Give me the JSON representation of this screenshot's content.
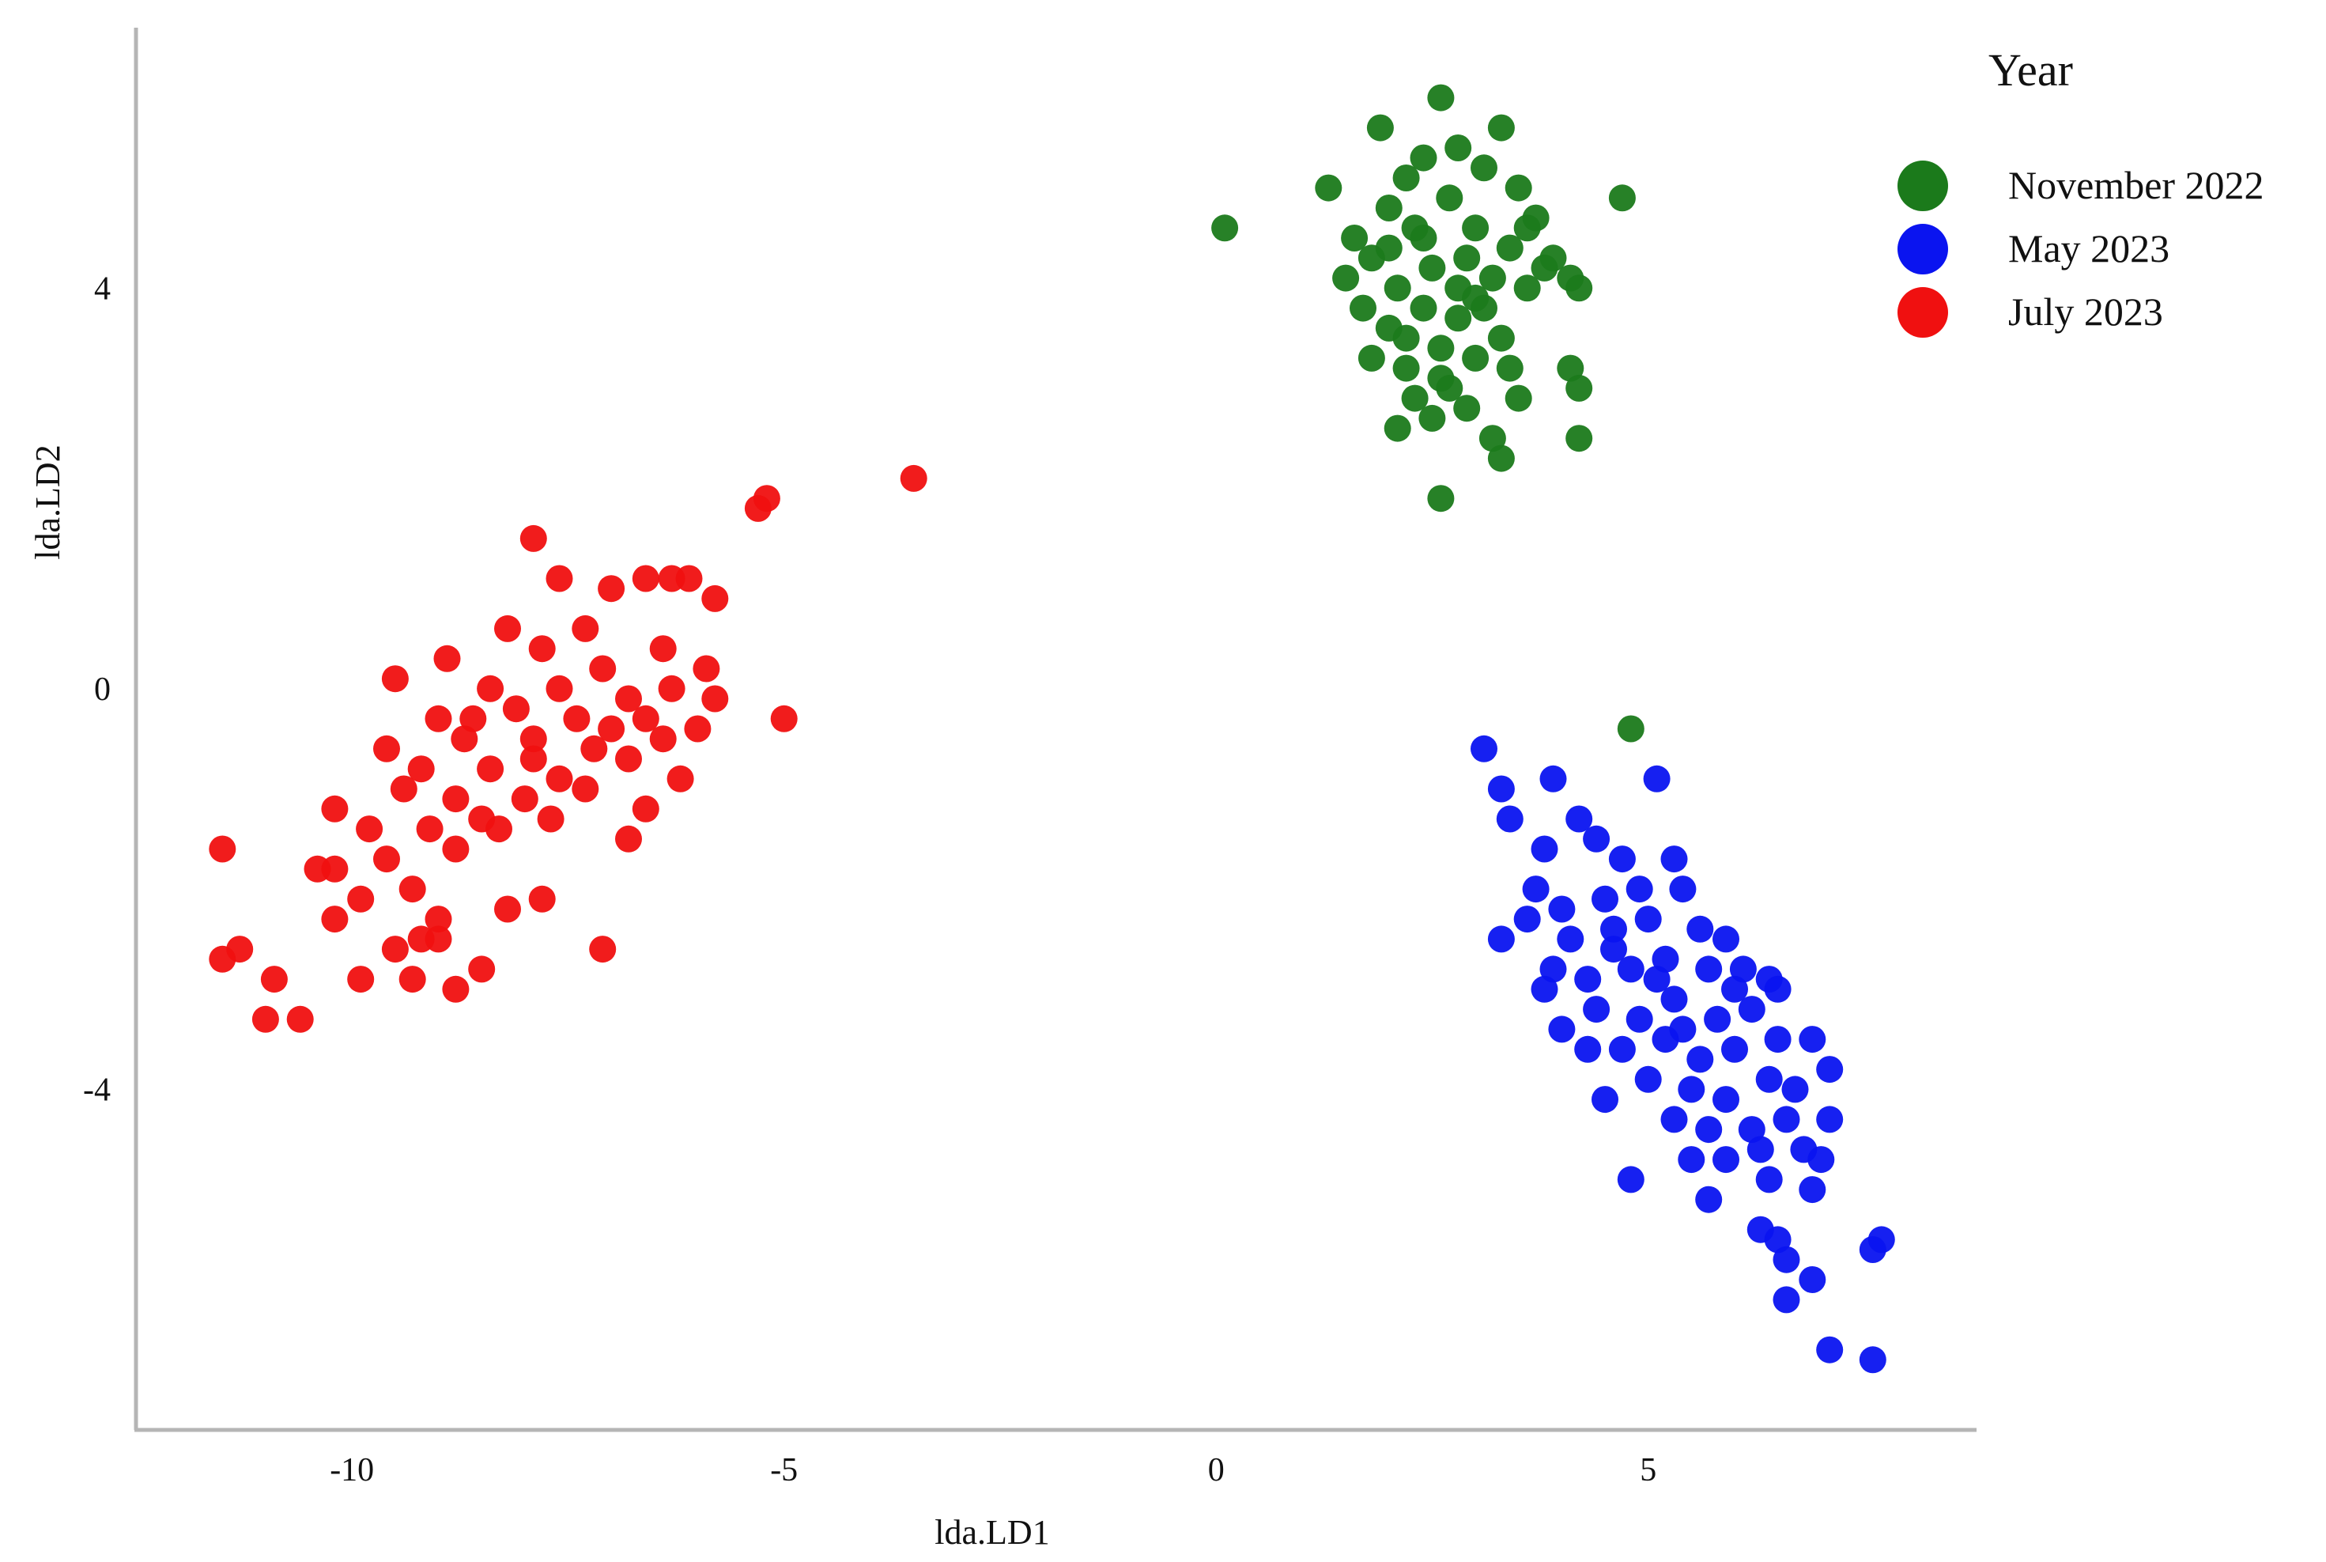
{
  "chart_data": {
    "type": "scatter",
    "xlabel": "lda.LD1",
    "ylabel": "lda.LD2",
    "xlim": [
      -12.5,
      8.8
    ],
    "ylim": [
      -7.4,
      6.6
    ],
    "x_ticks": [
      -10,
      -5,
      0,
      5
    ],
    "x_tick_labels": [
      "-10",
      "-5",
      "0",
      "5"
    ],
    "y_ticks": [
      -4,
      0,
      4
    ],
    "y_tick_labels": [
      "-4",
      "0",
      "4"
    ],
    "grid": false,
    "legend": {
      "title": "Year",
      "placement": "top-right",
      "entries": [
        "November 2022",
        "May 2023",
        "July 2023"
      ]
    },
    "series": [
      {
        "name": "November 2022",
        "color": "#1b7a1b",
        "points": [
          [
            0.1,
            4.6
          ],
          [
            1.3,
            5.0
          ],
          [
            1.9,
            5.6
          ],
          [
            2.6,
            5.9
          ],
          [
            3.3,
            5.6
          ],
          [
            4.7,
            4.9
          ],
          [
            2.4,
            5.3
          ],
          [
            2.8,
            5.4
          ],
          [
            3.1,
            5.2
          ],
          [
            2.2,
            5.1
          ],
          [
            2.0,
            4.8
          ],
          [
            3.5,
            5.0
          ],
          [
            3.7,
            4.7
          ],
          [
            1.6,
            4.5
          ],
          [
            1.5,
            4.1
          ],
          [
            1.8,
            4.3
          ],
          [
            2.3,
            4.6
          ],
          [
            2.7,
            4.9
          ],
          [
            3.0,
            4.6
          ],
          [
            3.4,
            4.4
          ],
          [
            3.9,
            4.3
          ],
          [
            4.1,
            4.1
          ],
          [
            4.2,
            4.0
          ],
          [
            2.1,
            4.0
          ],
          [
            2.5,
            4.2
          ],
          [
            2.9,
            4.3
          ],
          [
            3.2,
            4.1
          ],
          [
            3.6,
            4.0
          ],
          [
            1.7,
            3.8
          ],
          [
            2.0,
            3.6
          ],
          [
            2.4,
            3.8
          ],
          [
            2.8,
            3.7
          ],
          [
            3.1,
            3.8
          ],
          [
            3.3,
            3.5
          ],
          [
            1.8,
            3.3
          ],
          [
            2.2,
            3.2
          ],
          [
            2.6,
            3.4
          ],
          [
            3.0,
            3.3
          ],
          [
            3.4,
            3.2
          ],
          [
            2.3,
            2.9
          ],
          [
            2.7,
            3.0
          ],
          [
            3.5,
            2.9
          ],
          [
            4.1,
            3.2
          ],
          [
            4.2,
            3.0
          ],
          [
            2.1,
            2.6
          ],
          [
            2.5,
            2.7
          ],
          [
            2.9,
            2.8
          ],
          [
            3.2,
            2.5
          ],
          [
            3.3,
            2.3
          ],
          [
            4.2,
            2.5
          ],
          [
            2.6,
            1.9
          ],
          [
            2.0,
            4.4
          ],
          [
            2.4,
            4.5
          ],
          [
            2.8,
            4.0
          ],
          [
            3.6,
            4.6
          ],
          [
            2.2,
            3.5
          ],
          [
            2.6,
            3.1
          ],
          [
            3.0,
            3.9
          ],
          [
            3.8,
            4.2
          ],
          [
            4.8,
            -0.4
          ]
        ]
      },
      {
        "name": "May 2023",
        "color": "#0a14f0",
        "points": [
          [
            3.1,
            -0.6
          ],
          [
            3.3,
            -1.0
          ],
          [
            3.4,
            -1.3
          ],
          [
            3.9,
            -0.9
          ],
          [
            4.2,
            -1.3
          ],
          [
            5.1,
            -0.9
          ],
          [
            3.8,
            -1.6
          ],
          [
            4.4,
            -1.5
          ],
          [
            4.7,
            -1.7
          ],
          [
            5.3,
            -1.7
          ],
          [
            3.7,
            -2.0
          ],
          [
            4.0,
            -2.2
          ],
          [
            4.5,
            -2.1
          ],
          [
            4.9,
            -2.0
          ],
          [
            5.4,
            -2.0
          ],
          [
            3.3,
            -2.5
          ],
          [
            3.6,
            -2.3
          ],
          [
            4.1,
            -2.5
          ],
          [
            4.6,
            -2.4
          ],
          [
            5.0,
            -2.3
          ],
          [
            5.6,
            -2.4
          ],
          [
            5.9,
            -2.5
          ],
          [
            3.9,
            -2.8
          ],
          [
            4.3,
            -2.9
          ],
          [
            4.8,
            -2.8
          ],
          [
            5.2,
            -2.7
          ],
          [
            5.7,
            -2.8
          ],
          [
            6.1,
            -2.8
          ],
          [
            6.4,
            -2.9
          ],
          [
            3.8,
            -3.0
          ],
          [
            4.4,
            -3.2
          ],
          [
            4.9,
            -3.3
          ],
          [
            5.3,
            -3.1
          ],
          [
            5.8,
            -3.3
          ],
          [
            6.2,
            -3.2
          ],
          [
            6.5,
            -3.0
          ],
          [
            4.3,
            -3.6
          ],
          [
            4.7,
            -3.6
          ],
          [
            5.2,
            -3.5
          ],
          [
            5.6,
            -3.7
          ],
          [
            6.0,
            -3.6
          ],
          [
            6.5,
            -3.5
          ],
          [
            6.9,
            -3.5
          ],
          [
            4.5,
            -4.1
          ],
          [
            5.0,
            -3.9
          ],
          [
            5.5,
            -4.0
          ],
          [
            5.9,
            -4.1
          ],
          [
            6.4,
            -3.9
          ],
          [
            7.1,
            -3.8
          ],
          [
            5.3,
            -4.3
          ],
          [
            5.7,
            -4.4
          ],
          [
            6.2,
            -4.4
          ],
          [
            6.6,
            -4.3
          ],
          [
            7.1,
            -4.3
          ],
          [
            5.5,
            -4.7
          ],
          [
            5.9,
            -4.7
          ],
          [
            6.3,
            -4.6
          ],
          [
            6.8,
            -4.6
          ],
          [
            7.0,
            -4.7
          ],
          [
            4.8,
            -4.9
          ],
          [
            5.7,
            -5.1
          ],
          [
            6.4,
            -4.9
          ],
          [
            6.9,
            -5.0
          ],
          [
            6.3,
            -5.4
          ],
          [
            6.5,
            -5.5
          ],
          [
            6.6,
            -5.7
          ],
          [
            7.7,
            -5.5
          ],
          [
            7.6,
            -5.6
          ],
          [
            6.9,
            -5.9
          ],
          [
            6.6,
            -6.1
          ],
          [
            7.1,
            -6.6
          ],
          [
            7.6,
            -6.7
          ],
          [
            4.6,
            -2.6
          ],
          [
            5.1,
            -2.9
          ],
          [
            5.4,
            -3.4
          ],
          [
            6.0,
            -3.0
          ],
          [
            4.0,
            -3.4
          ],
          [
            6.7,
            -4.0
          ]
        ]
      },
      {
        "name": "July 2023",
        "color": "#f01010",
        "points": [
          [
            -3.5,
            2.1
          ],
          [
            -5.3,
            1.8
          ],
          [
            -5.2,
            1.9
          ],
          [
            -7.9,
            1.5
          ],
          [
            -7.6,
            1.1
          ],
          [
            -6.6,
            1.1
          ],
          [
            -6.1,
            1.1
          ],
          [
            -6.3,
            1.1
          ],
          [
            -7.0,
            1.0
          ],
          [
            -5.8,
            0.9
          ],
          [
            -8.2,
            0.6
          ],
          [
            -7.3,
            0.6
          ],
          [
            -7.8,
            0.4
          ],
          [
            -8.9,
            0.3
          ],
          [
            -6.4,
            0.4
          ],
          [
            -9.5,
            0.1
          ],
          [
            -7.1,
            0.2
          ],
          [
            -5.9,
            0.2
          ],
          [
            -8.4,
            0.0
          ],
          [
            -7.6,
            0.0
          ],
          [
            -6.8,
            -0.1
          ],
          [
            -6.3,
            0.0
          ],
          [
            -5.8,
            -0.1
          ],
          [
            -9.0,
            -0.3
          ],
          [
            -8.1,
            -0.2
          ],
          [
            -7.4,
            -0.3
          ],
          [
            -6.6,
            -0.3
          ],
          [
            -5.0,
            -0.3
          ],
          [
            -9.6,
            -0.6
          ],
          [
            -8.7,
            -0.5
          ],
          [
            -7.9,
            -0.5
          ],
          [
            -7.2,
            -0.6
          ],
          [
            -6.4,
            -0.5
          ],
          [
            -9.2,
            -0.8
          ],
          [
            -8.4,
            -0.8
          ],
          [
            -7.6,
            -0.9
          ],
          [
            -6.8,
            -0.7
          ],
          [
            -6.2,
            -0.9
          ],
          [
            -9.4,
            -1.0
          ],
          [
            -8.8,
            -1.1
          ],
          [
            -8.0,
            -1.1
          ],
          [
            -7.3,
            -1.0
          ],
          [
            -6.6,
            -1.2
          ],
          [
            -10.2,
            -1.2
          ],
          [
            -9.8,
            -1.4
          ],
          [
            -9.1,
            -1.4
          ],
          [
            -8.3,
            -1.4
          ],
          [
            -7.7,
            -1.3
          ],
          [
            -6.8,
            -1.5
          ],
          [
            -9.6,
            -1.7
          ],
          [
            -8.8,
            -1.6
          ],
          [
            -11.5,
            -1.6
          ],
          [
            -10.4,
            -1.8
          ],
          [
            -10.2,
            -1.8
          ],
          [
            -9.3,
            -2.0
          ],
          [
            -9.9,
            -2.1
          ],
          [
            -8.2,
            -2.2
          ],
          [
            -7.8,
            -2.1
          ],
          [
            -10.2,
            -2.3
          ],
          [
            -9.0,
            -2.3
          ],
          [
            -9.2,
            -2.5
          ],
          [
            -9.5,
            -2.6
          ],
          [
            -9.0,
            -2.5
          ],
          [
            -11.5,
            -2.7
          ],
          [
            -11.3,
            -2.6
          ],
          [
            -7.1,
            -2.6
          ],
          [
            -9.3,
            -2.9
          ],
          [
            -8.5,
            -2.8
          ],
          [
            -9.9,
            -2.9
          ],
          [
            -10.9,
            -2.9
          ],
          [
            -8.8,
            -3.0
          ],
          [
            -11.0,
            -3.3
          ],
          [
            -10.6,
            -3.3
          ],
          [
            -8.6,
            -0.3
          ],
          [
            -7.0,
            -0.4
          ],
          [
            -7.9,
            -0.7
          ],
          [
            -6.0,
            -0.4
          ],
          [
            -8.5,
            -1.3
          ]
        ]
      }
    ]
  }
}
